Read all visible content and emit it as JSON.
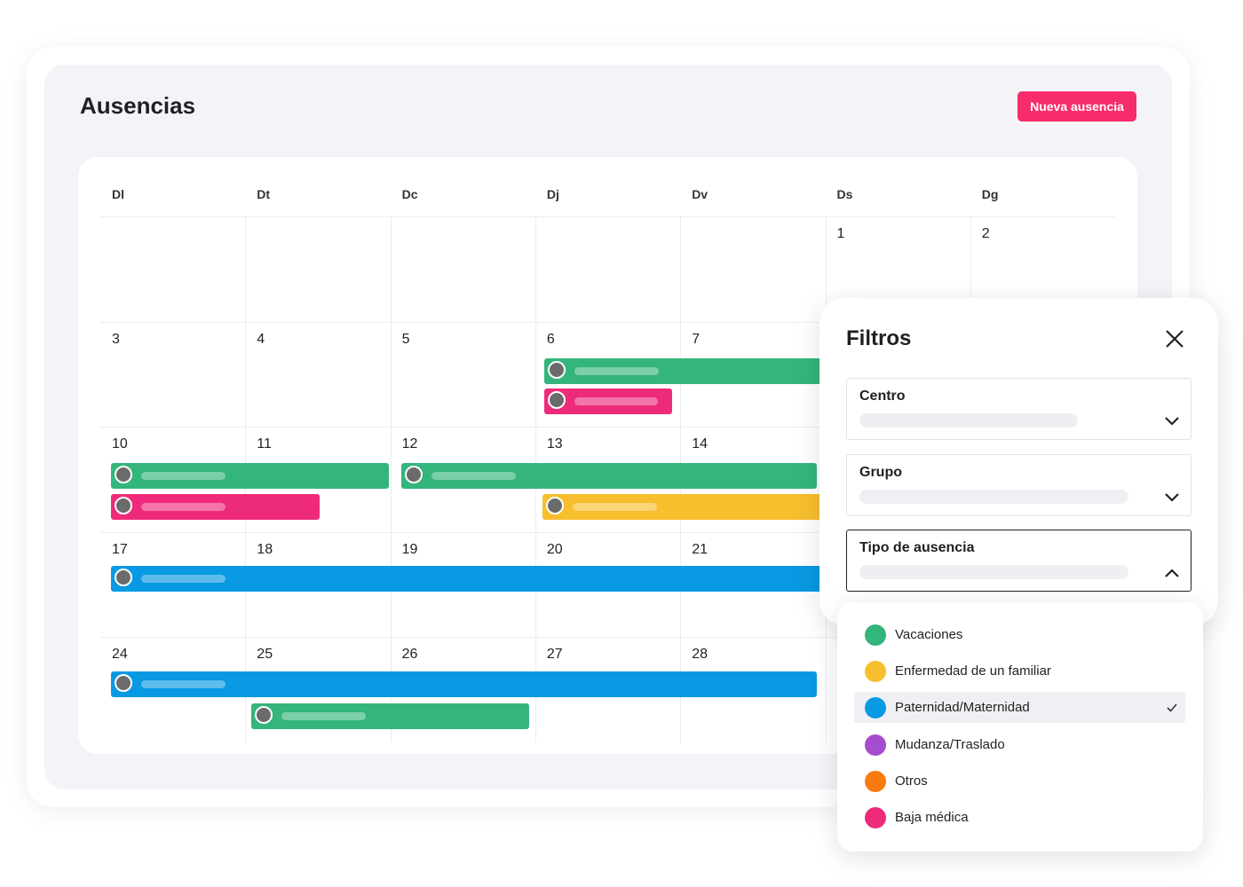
{
  "header": {
    "title": "Ausencias",
    "button": "Nueva ausencia"
  },
  "calendar": {
    "weekdays": [
      "Dl",
      "Dt",
      "Dc",
      "Dj",
      "Dv",
      "Ds",
      "Dg"
    ],
    "weeks": [
      [
        null,
        null,
        null,
        null,
        null,
        1,
        2
      ],
      [
        3,
        4,
        5,
        6,
        7,
        null,
        null
      ],
      [
        10,
        11,
        12,
        13,
        14,
        null,
        null
      ],
      [
        17,
        18,
        19,
        20,
        21,
        null,
        null
      ],
      [
        24,
        25,
        26,
        27,
        28,
        null,
        null
      ]
    ]
  },
  "filters": {
    "title": "Filtros",
    "fields": [
      {
        "label": "Centro"
      },
      {
        "label": "Grupo"
      },
      {
        "label": "Tipo de ausencia",
        "open": true
      }
    ],
    "options": [
      {
        "label": "Vacaciones",
        "color": "#34b57b"
      },
      {
        "label": "Enfermedad de un familiar",
        "color": "#f7bf2d"
      },
      {
        "label": "Paternidad/Maternidad",
        "color": "#0899e3",
        "selected": true
      },
      {
        "label": "Mudanza/Traslado",
        "color": "#a54ccf"
      },
      {
        "label": "Otros",
        "color": "#fb7a0f"
      },
      {
        "label": "Baja médica",
        "color": "#ee2b7b"
      }
    ]
  }
}
